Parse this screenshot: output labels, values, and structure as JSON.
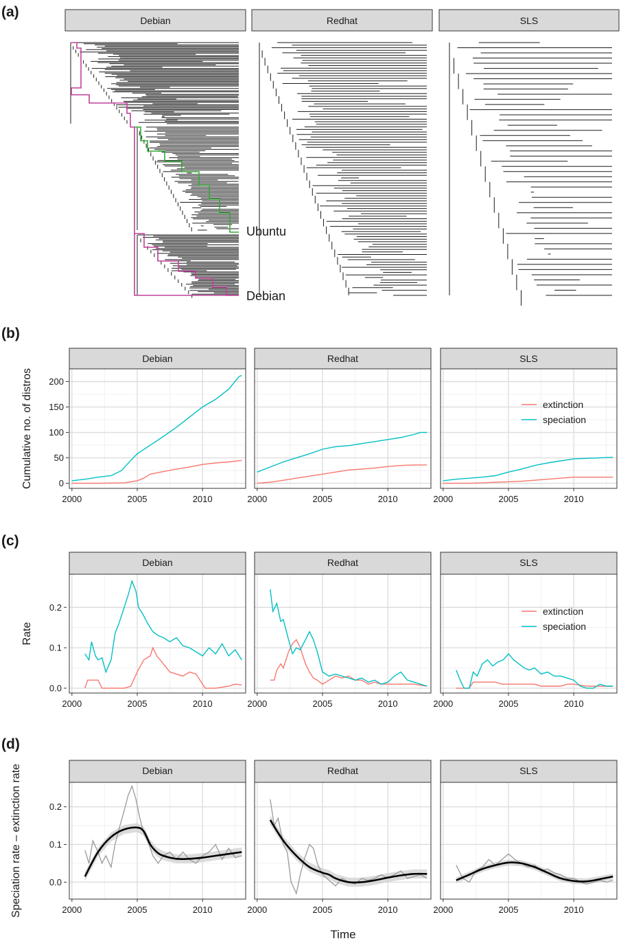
{
  "figure": {
    "xlabel": "Time",
    "colors": {
      "extinction": "#F8766D",
      "speciation": "#00BFC4",
      "smooth": "#000000",
      "raw": "#999999",
      "tree": "#1a1a1a",
      "ubuntu": "#33aa33",
      "debian": "#c0409a",
      "strip": "#d9d9d9",
      "grid": "#dddddd"
    }
  },
  "chart_data": [
    {
      "panel_label": "(a)",
      "type": "tree",
      "facets": [
        "Debian",
        "Redhat",
        "SLS"
      ],
      "highlights": [
        {
          "name": "Ubuntu",
          "facet": "Debian",
          "color": "#33aa33"
        },
        {
          "name": "Debian",
          "facet": "Debian",
          "color": "#c0409a"
        }
      ],
      "tips": {
        "Debian": 210,
        "Redhat": 100,
        "SLS": 50
      }
    },
    {
      "panel_label": "(b)",
      "type": "line",
      "facets": [
        "Debian",
        "Redhat",
        "SLS"
      ],
      "ylabel": "Cumulative no. of distros",
      "xlim": [
        1999.8,
        2013.3
      ],
      "ylim": [
        -10,
        225
      ],
      "xticks": [
        2000,
        2005,
        2010
      ],
      "yticks": [
        0,
        50,
        100,
        150,
        200
      ],
      "legend": {
        "position": "right",
        "facet": "SLS",
        "entries": [
          "extinction",
          "speciation"
        ]
      },
      "data": {
        "Debian": {
          "speciation": {
            "x": [
              2000,
              2001,
              2002,
              2003,
              2003.8,
              2004.5,
              2005,
              2006,
              2007,
              2008,
              2009,
              2010,
              2011,
              2012,
              2012.8,
              2013
            ],
            "y": [
              5,
              8,
              12,
              15,
              25,
              45,
              58,
              75,
              92,
              110,
              130,
              150,
              165,
              185,
              210,
              212
            ]
          },
          "extinction": {
            "x": [
              2000,
              2002,
              2004,
              2005,
              2005.5,
              2006,
              2007,
              2008,
              2009,
              2010,
              2011,
              2012,
              2013
            ],
            "y": [
              0,
              0,
              1,
              5,
              10,
              18,
              23,
              28,
              32,
              37,
              40,
              42,
              45
            ]
          }
        },
        "Redhat": {
          "speciation": {
            "x": [
              2000,
              2001,
              2002,
              2003,
              2004,
              2005,
              2006,
              2007,
              2008,
              2009,
              2010,
              2011,
              2012,
              2012.5,
              2013
            ],
            "y": [
              22,
              32,
              42,
              50,
              58,
              67,
              72,
              74,
              78,
              82,
              86,
              90,
              96,
              100,
              100
            ]
          },
          "extinction": {
            "x": [
              2000,
              2001,
              2002,
              2003,
              2004,
              2005,
              2006,
              2007,
              2008,
              2009,
              2010,
              2011,
              2012,
              2013
            ],
            "y": [
              0,
              2,
              6,
              10,
              14,
              18,
              22,
              26,
              28,
              30,
              33,
              35,
              36,
              36
            ]
          }
        },
        "SLS": {
          "speciation": {
            "x": [
              2000,
              2001,
              2002,
              2003,
              2004,
              2005,
              2006,
              2007,
              2008,
              2009,
              2010,
              2011,
              2012,
              2013
            ],
            "y": [
              5,
              8,
              10,
              12,
              15,
              22,
              28,
              35,
              40,
              44,
              48,
              49,
              50,
              51
            ]
          },
          "extinction": {
            "x": [
              2000,
              2001,
              2002,
              2003,
              2004,
              2005,
              2006,
              2007,
              2008,
              2009,
              2010,
              2011,
              2012,
              2013
            ],
            "y": [
              0,
              0,
              0,
              1,
              2,
              3,
              4,
              6,
              8,
              10,
              12,
              12,
              12,
              12
            ]
          }
        }
      }
    },
    {
      "panel_label": "(c)",
      "type": "line",
      "facets": [
        "Debian",
        "Redhat",
        "SLS"
      ],
      "ylabel": "Rate",
      "xlim": [
        1999.8,
        2013.3
      ],
      "ylim": [
        -0.012,
        0.282
      ],
      "xticks": [
        2000,
        2005,
        2010
      ],
      "yticks": [
        0.0,
        0.1,
        0.2
      ],
      "ytick_labels": [
        "0.0",
        "0.1",
        "0.2"
      ],
      "legend": {
        "position": "right",
        "facet": "SLS",
        "entries": [
          "extinction",
          "speciation"
        ]
      },
      "data": {
        "Debian": {
          "speciation": {
            "x": [
              2001,
              2001.3,
              2001.5,
              2001.8,
              2002,
              2002.3,
              2002.6,
              2003,
              2003.3,
              2003.6,
              2004,
              2004.3,
              2004.6,
              2004.9,
              2005.1,
              2005.4,
              2005.8,
              2006.2,
              2006.6,
              2007,
              2007.5,
              2008,
              2008.5,
              2009,
              2009.5,
              2010,
              2010.5,
              2011,
              2011.5,
              2012,
              2012.5,
              2013
            ],
            "y": [
              0.085,
              0.07,
              0.115,
              0.08,
              0.07,
              0.075,
              0.04,
              0.07,
              0.135,
              0.16,
              0.2,
              0.23,
              0.265,
              0.24,
              0.2,
              0.185,
              0.16,
              0.14,
              0.13,
              0.125,
              0.115,
              0.125,
              0.105,
              0.1,
              0.09,
              0.08,
              0.1,
              0.085,
              0.11,
              0.08,
              0.095,
              0.07
            ]
          },
          "extinction": {
            "x": [
              2001,
              2001.2,
              2002,
              2002.3,
              2002.5,
              2004,
              2004.5,
              2005,
              2005.5,
              2006,
              2006.2,
              2006.5,
              2007,
              2007.5,
              2008,
              2008.5,
              2009,
              2009.5,
              2010,
              2010.2,
              2011,
              2012,
              2012.5,
              2013
            ],
            "y": [
              0.0,
              0.02,
              0.02,
              0.0,
              0.0,
              0.0,
              0.005,
              0.04,
              0.07,
              0.08,
              0.1,
              0.08,
              0.06,
              0.04,
              0.035,
              0.03,
              0.04,
              0.035,
              0.01,
              0.0,
              0.0,
              0.005,
              0.01,
              0.008
            ]
          }
        },
        "Redhat": {
          "speciation": {
            "x": [
              2001,
              2001.2,
              2001.5,
              2001.8,
              2002,
              2002.4,
              2002.7,
              2003,
              2003.3,
              2003.7,
              2004,
              2004.3,
              2004.6,
              2005,
              2005.5,
              2006,
              2006.5,
              2007,
              2007.5,
              2008,
              2008.5,
              2009,
              2009.5,
              2010,
              2010.5,
              2011,
              2011.5,
              2012,
              2012.5,
              2013
            ],
            "y": [
              0.245,
              0.19,
              0.21,
              0.165,
              0.17,
              0.12,
              0.085,
              0.1,
              0.095,
              0.12,
              0.14,
              0.12,
              0.09,
              0.04,
              0.03,
              0.035,
              0.03,
              0.025,
              0.02,
              0.025,
              0.015,
              0.02,
              0.01,
              0.015,
              0.03,
              0.04,
              0.02,
              0.015,
              0.01,
              0.005
            ]
          },
          "extinction": {
            "x": [
              2001,
              2001.3,
              2001.5,
              2001.8,
              2002,
              2002.4,
              2002.7,
              2003,
              2003.3,
              2003.7,
              2004,
              2004.3,
              2004.6,
              2005,
              2005.5,
              2006,
              2006.5,
              2007,
              2007.5,
              2008,
              2008.5,
              2009,
              2009.5,
              2010,
              2010.5,
              2011,
              2012,
              2013
            ],
            "y": [
              0.02,
              0.02,
              0.045,
              0.06,
              0.05,
              0.09,
              0.11,
              0.12,
              0.1,
              0.06,
              0.04,
              0.025,
              0.02,
              0.01,
              0.02,
              0.03,
              0.025,
              0.03,
              0.02,
              0.02,
              0.01,
              0.015,
              0.01,
              0.01,
              0.01,
              0.01,
              0.01,
              0.005
            ]
          }
        },
        "SLS": {
          "speciation": {
            "x": [
              2001,
              2001.3,
              2001.6,
              2002,
              2002.3,
              2002.6,
              2003,
              2003.4,
              2003.8,
              2004.2,
              2004.6,
              2005,
              2005.4,
              2005.8,
              2006.2,
              2006.6,
              2007,
              2007.5,
              2008,
              2008.5,
              2009,
              2009.5,
              2010,
              2010.5,
              2011,
              2011.5,
              2012,
              2012.5,
              2013
            ],
            "y": [
              0.045,
              0.02,
              0.0,
              0.0,
              0.04,
              0.03,
              0.06,
              0.07,
              0.055,
              0.065,
              0.07,
              0.085,
              0.07,
              0.06,
              0.05,
              0.045,
              0.05,
              0.035,
              0.04,
              0.03,
              0.03,
              0.025,
              0.02,
              0.005,
              0.0,
              0.0,
              0.01,
              0.005,
              0.005
            ]
          },
          "extinction": {
            "x": [
              2001,
              2002,
              2002.3,
              2003,
              2004,
              2004.5,
              2005,
              2006,
              2007,
              2007.5,
              2008,
              2009,
              2009.5,
              2010,
              2011,
              2012,
              2013
            ],
            "y": [
              0.0,
              0.0,
              0.015,
              0.015,
              0.015,
              0.01,
              0.01,
              0.01,
              0.01,
              0.005,
              0.005,
              0.005,
              0.01,
              0.01,
              0.005,
              0.005,
              0.005
            ]
          }
        }
      }
    },
    {
      "panel_label": "(d)",
      "type": "line",
      "facets": [
        "Debian",
        "Redhat",
        "SLS"
      ],
      "ylabel": "Speciation rate – extinction rate",
      "xlim": [
        1999.8,
        2013.3
      ],
      "ylim": [
        -0.045,
        0.265
      ],
      "xticks": [
        2000,
        2005,
        2010
      ],
      "yticks": [
        0.0,
        0.1,
        0.2
      ],
      "ytick_labels": [
        "0.0",
        "0.1",
        "0.2"
      ],
      "data": {
        "Debian": {
          "raw": {
            "x": [
              2001,
              2001.3,
              2001.6,
              2002,
              2002.3,
              2002.6,
              2003,
              2003.3,
              2003.6,
              2004,
              2004.3,
              2004.6,
              2004.9,
              2005.2,
              2005.5,
              2005.8,
              2006.2,
              2006.6,
              2007,
              2007.5,
              2008,
              2008.5,
              2009,
              2009.5,
              2010,
              2010.5,
              2011,
              2011.5,
              2012,
              2012.5,
              2013
            ],
            "y": [
              0.085,
              0.05,
              0.11,
              0.08,
              0.05,
              0.07,
              0.04,
              0.1,
              0.14,
              0.19,
              0.23,
              0.255,
              0.22,
              0.17,
              0.13,
              0.11,
              0.07,
              0.05,
              0.07,
              0.08,
              0.06,
              0.08,
              0.06,
              0.05,
              0.07,
              0.08,
              0.1,
              0.06,
              0.09,
              0.065,
              0.07
            ]
          },
          "smooth": {
            "x": [
              2001,
              2002,
              2003,
              2004,
              2005,
              2005.5,
              2006,
              2006.5,
              2007,
              2008,
              2009,
              2010,
              2011,
              2012,
              2013
            ],
            "y": [
              0.015,
              0.08,
              0.12,
              0.14,
              0.145,
              0.135,
              0.1,
              0.08,
              0.07,
              0.062,
              0.062,
              0.065,
              0.07,
              0.075,
              0.08
            ]
          },
          "ci_halfwidth": 0.012
        },
        "Redhat": {
          "raw": {
            "x": [
              2001,
              2001.3,
              2001.6,
              2002,
              2002.3,
              2002.6,
              2003,
              2003.3,
              2003.6,
              2004,
              2004.3,
              2004.6,
              2005,
              2005.5,
              2006,
              2006.5,
              2007,
              2007.5,
              2008,
              2008.5,
              2009,
              2009.5,
              2010,
              2010.5,
              2011,
              2011.5,
              2012,
              2012.5,
              2013
            ],
            "y": [
              0.22,
              0.15,
              0.17,
              0.1,
              0.08,
              0.0,
              -0.03,
              0.02,
              0.06,
              0.1,
              0.09,
              0.05,
              0.02,
              0.005,
              -0.01,
              0.01,
              0.0,
              -0.005,
              0.01,
              0.005,
              0.01,
              0.02,
              0.01,
              0.02,
              0.03,
              0.01,
              0.015,
              0.02,
              0.01
            ]
          },
          "smooth": {
            "x": [
              2001,
              2002,
              2003,
              2004,
              2005,
              2005.5,
              2006,
              2007,
              2008,
              2009,
              2010,
              2011,
              2012,
              2013
            ],
            "y": [
              0.165,
              0.11,
              0.07,
              0.04,
              0.025,
              0.02,
              0.01,
              0.0,
              0.0,
              0.005,
              0.012,
              0.018,
              0.022,
              0.022
            ]
          },
          "ci_halfwidth": 0.012
        },
        "SLS": {
          "raw": {
            "x": [
              2001,
              2001.5,
              2002,
              2002.5,
              2003,
              2003.5,
              2004,
              2004.5,
              2005,
              2005.5,
              2006,
              2006.5,
              2007,
              2007.5,
              2008,
              2008.5,
              2009,
              2009.5,
              2010,
              2010.5,
              2011,
              2011.5,
              2012,
              2012.5,
              2013
            ],
            "y": [
              0.045,
              0.01,
              0.0,
              0.03,
              0.04,
              0.06,
              0.045,
              0.06,
              0.075,
              0.06,
              0.05,
              0.04,
              0.045,
              0.03,
              0.035,
              0.025,
              0.02,
              0.01,
              0.01,
              0.0,
              -0.005,
              0.0,
              0.005,
              0.0,
              0.005
            ]
          },
          "smooth": {
            "x": [
              2001,
              2002,
              2003,
              2004,
              2005,
              2006,
              2007,
              2008,
              2009,
              2010,
              2011,
              2012,
              2013
            ],
            "y": [
              0.005,
              0.02,
              0.035,
              0.045,
              0.052,
              0.05,
              0.04,
              0.025,
              0.01,
              0.003,
              0.002,
              0.008,
              0.015
            ]
          },
          "ci_halfwidth": 0.008
        }
      }
    }
  ]
}
